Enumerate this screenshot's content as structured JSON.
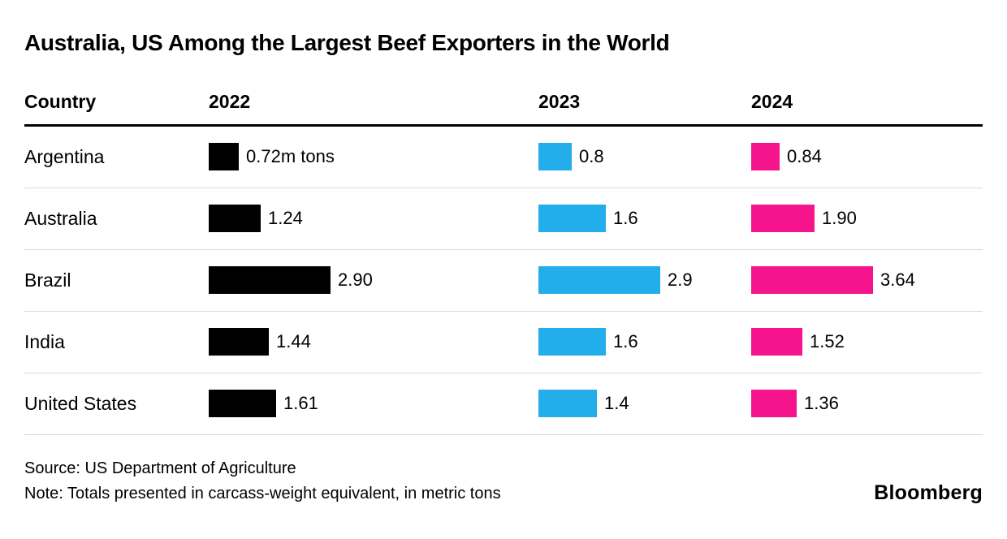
{
  "title": "Australia, US Among the Largest Beef Exporters in the World",
  "footer": {
    "source": "Source: US Department of Agriculture",
    "note": "Note: Totals presented in carcass-weight equivalent, in metric tons",
    "brand": "Bloomberg"
  },
  "chart_data": {
    "type": "bar",
    "title": "Australia, US Among the Largest Beef Exporters in the World",
    "orientation": "horizontal",
    "grid": false,
    "legend_position": "none",
    "unit": "m tons",
    "country_header": "Country",
    "columns": [
      {
        "label": "2022",
        "color": "#000000",
        "max": 2.9
      },
      {
        "label": "2023",
        "color": "#23AEEB",
        "max": 2.9
      },
      {
        "label": "2024",
        "color": "#F5148C",
        "max": 3.64
      }
    ],
    "rows": [
      {
        "country": "Argentina",
        "values": [
          0.72,
          0.8,
          0.84
        ],
        "labels": [
          "0.72m tons",
          "0.8",
          "0.84"
        ]
      },
      {
        "country": "Australia",
        "values": [
          1.24,
          1.6,
          1.9
        ],
        "labels": [
          "1.24",
          "1.6",
          "1.90"
        ]
      },
      {
        "country": "Brazil",
        "values": [
          2.9,
          2.9,
          3.64
        ],
        "labels": [
          "2.90",
          "2.9",
          "3.64"
        ]
      },
      {
        "country": "India",
        "values": [
          1.44,
          1.6,
          1.52
        ],
        "labels": [
          "1.44",
          "1.6",
          "1.52"
        ]
      },
      {
        "country": "United States",
        "values": [
          1.61,
          1.4,
          1.36
        ],
        "labels": [
          "1.61",
          "1.4",
          "1.36"
        ]
      }
    ]
  }
}
